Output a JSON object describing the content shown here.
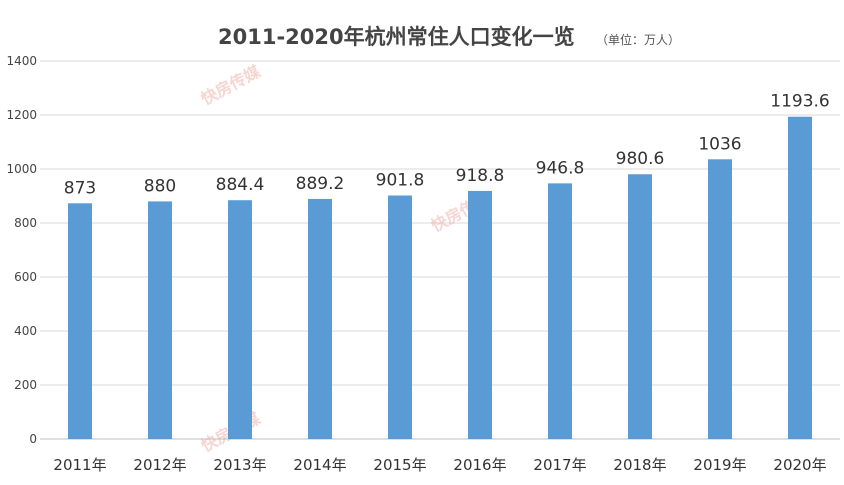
{
  "chart_data": {
    "type": "bar",
    "title": "2011-2020年杭州常住人口变化一览",
    "unit_note": "（单位：万人）",
    "categories": [
      "2011年",
      "2012年",
      "2013年",
      "2014年",
      "2015年",
      "2016年",
      "2017年",
      "2018年",
      "2019年",
      "2020年"
    ],
    "values": [
      873,
      880,
      884.4,
      889.2,
      901.8,
      918.8,
      946.8,
      980.6,
      1036,
      1193.6
    ],
    "data_labels": [
      "873",
      "880",
      "884.4",
      "889.2",
      "901.8",
      "918.8",
      "946.8",
      "980.6",
      "1036",
      "1193.6"
    ],
    "yticks": [
      "0",
      "200",
      "400",
      "600",
      "800",
      "1000",
      "1200",
      "1400"
    ],
    "ylim": [
      0,
      1400
    ],
    "grid": true,
    "legend": "none",
    "bar_color": "#5b9bd5",
    "watermark_text": "快房传媒"
  }
}
